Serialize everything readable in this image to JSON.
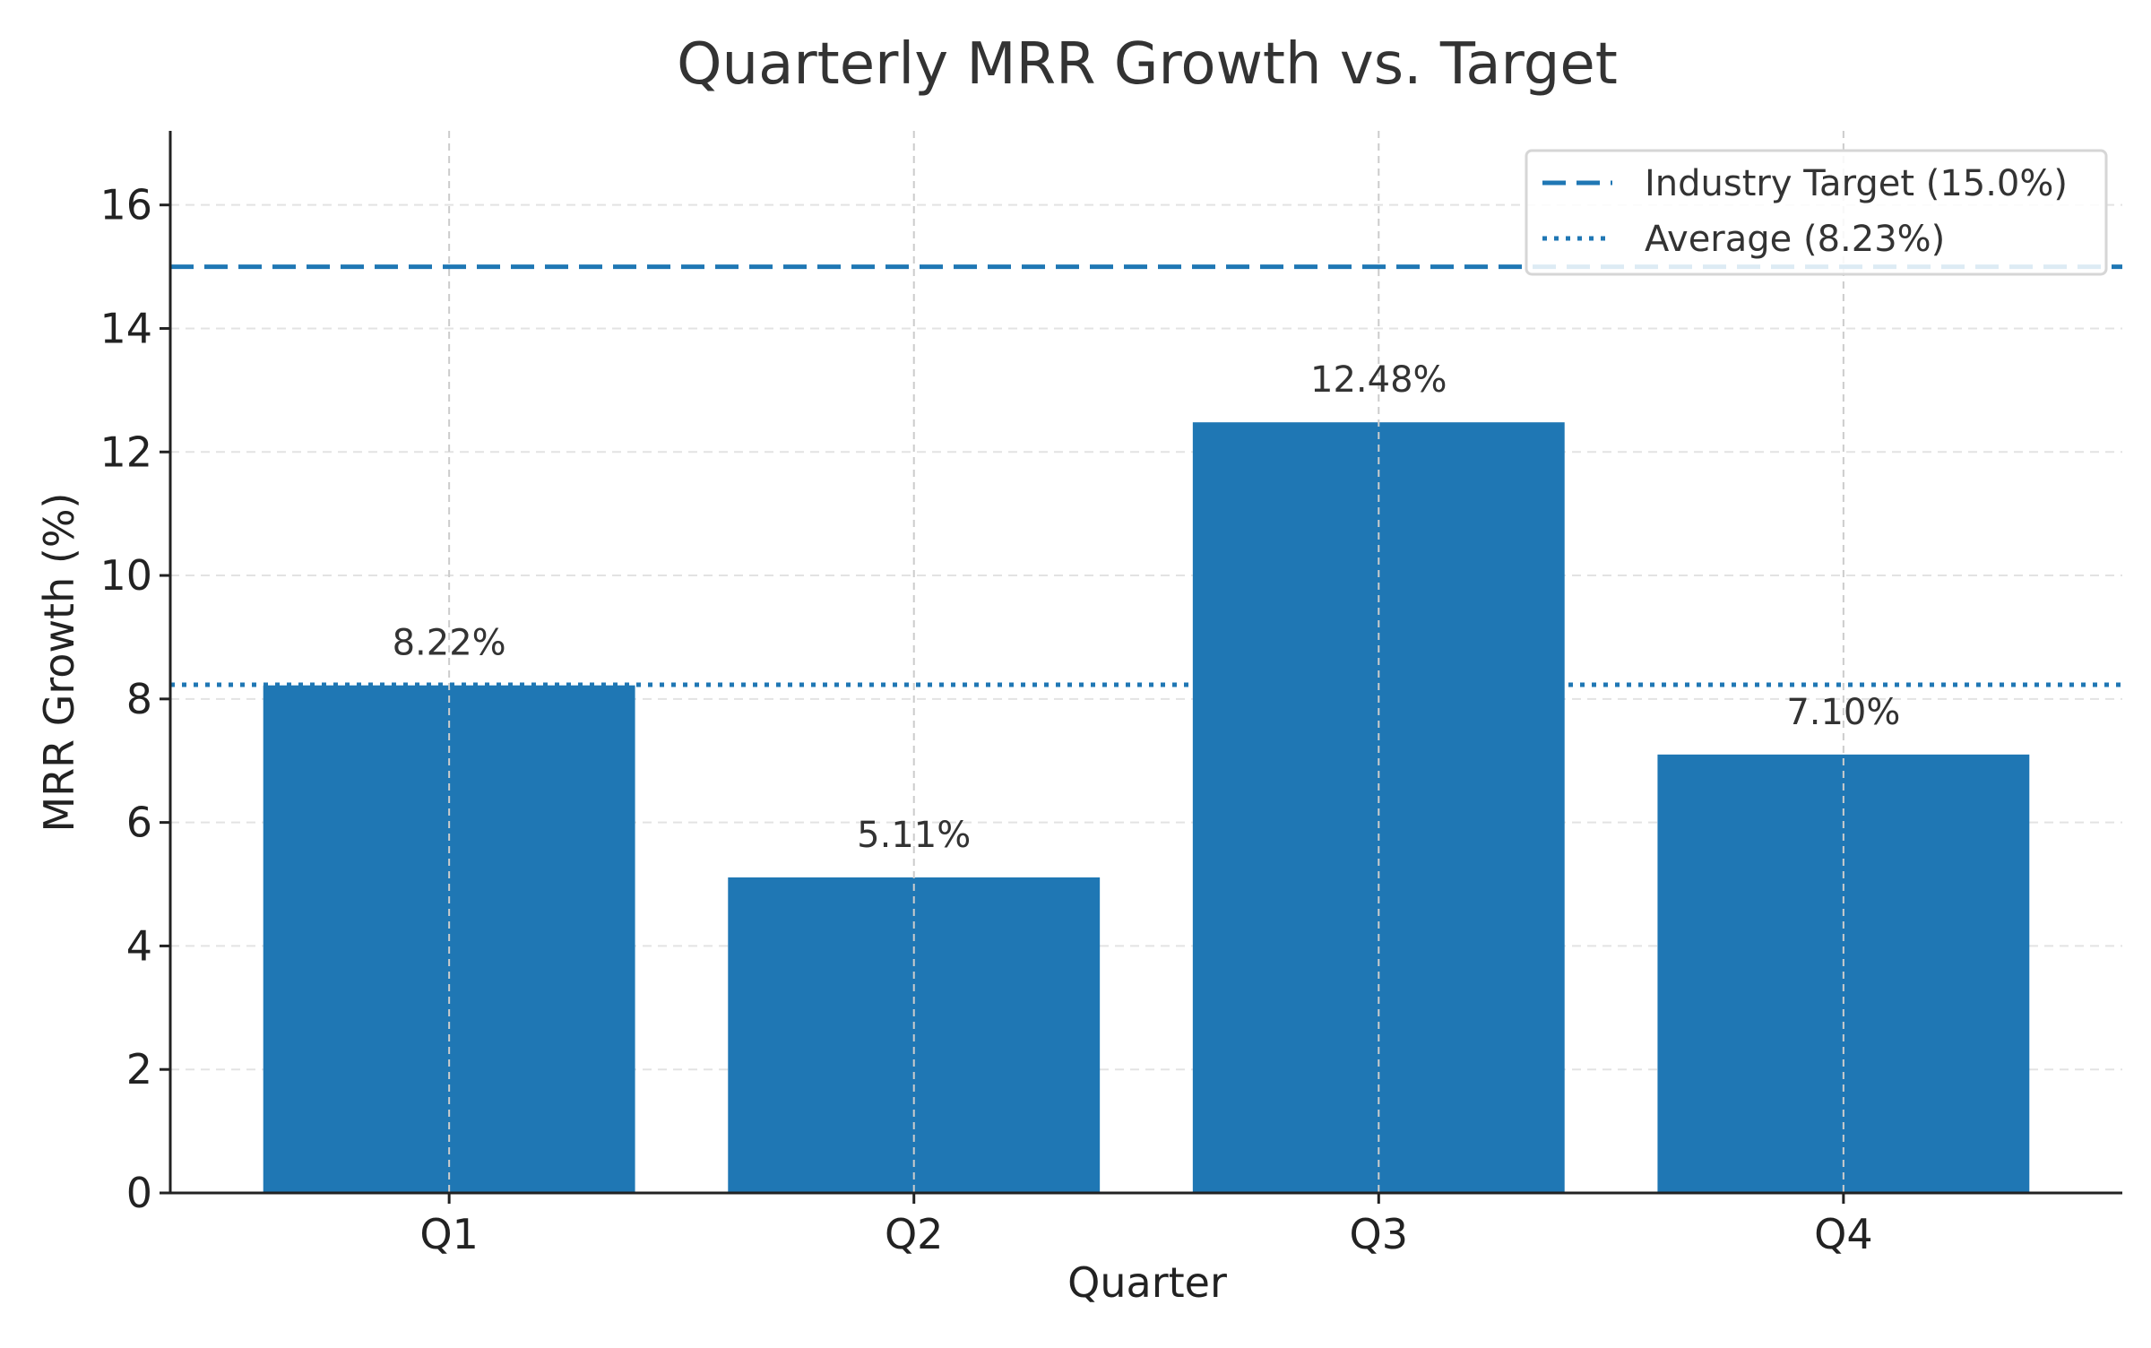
{
  "chart_data": {
    "type": "bar",
    "title": "Quarterly MRR Growth vs. Target",
    "xlabel": "Quarter",
    "ylabel": "MRR Growth (%)",
    "categories": [
      "Q1",
      "Q2",
      "Q3",
      "Q4"
    ],
    "values": [
      8.22,
      5.11,
      12.48,
      7.1
    ],
    "data_labels": [
      "8.22%",
      "5.11%",
      "12.48%",
      "7.10%"
    ],
    "ylim": [
      0,
      17.2
    ],
    "y_ticks": [
      0,
      2,
      4,
      6,
      8,
      10,
      12,
      14,
      16
    ],
    "grid": true,
    "legend_position": "top-right",
    "bar_color": "#1f77b4",
    "reference_lines": [
      {
        "name": "Industry Target (15.0%)",
        "value": 15.0,
        "style": "dashed",
        "color": "#1f77b4"
      },
      {
        "name": "Average (8.23%)",
        "value": 8.23,
        "style": "dotted",
        "color": "#1f77b4"
      }
    ]
  }
}
